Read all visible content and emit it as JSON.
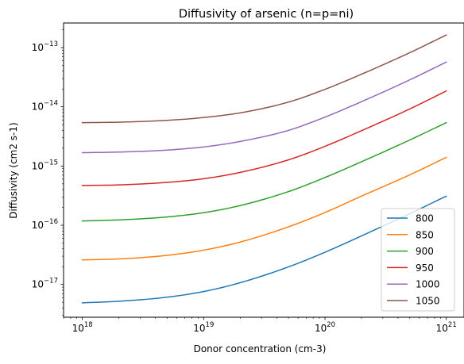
{
  "chart_data": {
    "type": "line",
    "title": "Diffusivity of arsenic (n=p=ni)",
    "xlabel": "Donor concentration (cm-3)",
    "ylabel": "Diffusivity (cm2 s-1)",
    "x_scale": "log",
    "y_scale": "log",
    "xlim": [
      7e+17,
      1.4e+21
    ],
    "ylim": [
      2.8e-18,
      2.6e-13
    ],
    "x_ticks": [
      {
        "base": "10",
        "exp": "18",
        "value": 1e+18
      },
      {
        "base": "10",
        "exp": "19",
        "value": 1e+19
      },
      {
        "base": "10",
        "exp": "20",
        "value": 1e+20
      },
      {
        "base": "10",
        "exp": "21",
        "value": 1e+21
      }
    ],
    "y_ticks": [
      {
        "base": "10",
        "exp": "−17",
        "value": 1e-17
      },
      {
        "base": "10",
        "exp": "−16",
        "value": 1e-16
      },
      {
        "base": "10",
        "exp": "−15",
        "value": 1e-15
      },
      {
        "base": "10",
        "exp": "−14",
        "value": 1e-14
      },
      {
        "base": "10",
        "exp": "−13",
        "value": 1e-13
      }
    ],
    "x": [
      1e+18,
      2e+18,
      5e+18,
      1e+19,
      2e+19,
      5e+19,
      1e+20,
      2e+20,
      5e+20,
      1e+21
    ],
    "legend_position": "lower right",
    "grid": false,
    "series": [
      {
        "name": "800",
        "color": "#1f77b4",
        "values": [
          4.9e-18,
          5.2e-18,
          6.1e-18,
          7.6e-18,
          1.07e-17,
          1.98e-17,
          3.5e-17,
          6.6e-17,
          1.57e-16,
          3.1e-16
        ]
      },
      {
        "name": "850",
        "color": "#ff7f0e",
        "values": [
          2.6e-17,
          2.7e-17,
          3.1e-17,
          3.8e-17,
          5.2e-17,
          9.4e-17,
          1.64e-16,
          3.1e-16,
          7.1e-16,
          1.4e-15
        ]
      },
      {
        "name": "900",
        "color": "#2ca02c",
        "values": [
          1.18e-16,
          1.23e-16,
          1.38e-16,
          1.63e-16,
          2.15e-16,
          3.7e-16,
          6.4e-16,
          1.18e-15,
          2.75e-15,
          5.4e-15
        ]
      },
      {
        "name": "950",
        "color": "#d62728",
        "values": [
          4.7e-16,
          4.8e-16,
          5.3e-16,
          6.1e-16,
          7.8e-16,
          1.27e-15,
          2.15e-15,
          3.95e-15,
          9.2e-15,
          1.85e-14
        ]
      },
      {
        "name": "1000",
        "color": "#9467bd",
        "values": [
          1.68e-15,
          1.72e-15,
          1.86e-15,
          2.1e-15,
          2.6e-15,
          4e-15,
          6.7e-15,
          1.22e-14,
          2.85e-14,
          5.7e-14
        ]
      },
      {
        "name": "1050",
        "color": "#8c564b",
        "values": [
          5.4e-15,
          5.5e-15,
          5.9e-15,
          6.6e-15,
          7.9e-15,
          1.2e-14,
          1.97e-14,
          3.55e-14,
          8.2e-14,
          1.63e-13
        ]
      }
    ]
  }
}
